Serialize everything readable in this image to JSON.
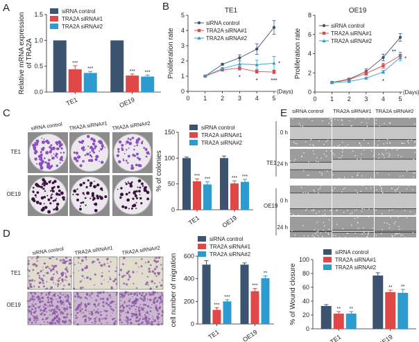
{
  "colors": {
    "control": "#3d5470",
    "sirna1": "#e04848",
    "sirna2": "#2e9bd0",
    "axis": "#222222"
  },
  "panel_labels": [
    "A",
    "B",
    "C",
    "D",
    "E"
  ],
  "photo_columns": [
    "siRNA control",
    "TRA2A siRNA#1",
    "TRA2A siRNA#2"
  ],
  "photo_rows": [
    "TE1",
    "OE19"
  ],
  "wound_timepoints": [
    "0 h",
    "24 h"
  ],
  "chart_data": [
    {
      "id": "A",
      "type": "bar",
      "title": "",
      "xlabel": "",
      "ylabel": "Relative mRNA expression of TRA2A",
      "ylim": [
        0,
        1.5
      ],
      "yticks": [
        "0.0",
        "0.5",
        "1.0",
        "1.5"
      ],
      "categories": [
        "TE1",
        "OE19"
      ],
      "legend": "top",
      "series": [
        {
          "name": "siRNA control",
          "values": [
            1.0,
            1.0
          ],
          "errors": [
            0,
            0
          ],
          "stars": [
            "",
            ""
          ]
        },
        {
          "name": "TRA2A siRNA#1",
          "values": [
            0.44,
            0.32
          ],
          "errors": [
            0.07,
            0.03
          ],
          "stars": [
            "***",
            "***"
          ]
        },
        {
          "name": "TRA2A siRNA#2",
          "values": [
            0.37,
            0.3
          ],
          "errors": [
            0.03,
            0.03
          ],
          "stars": [
            "***",
            "***"
          ]
        }
      ]
    },
    {
      "id": "B-TE1",
      "type": "line",
      "title": "TE1",
      "xlabel": "(Days)",
      "ylabel": "Proliferation rate",
      "xlim": [
        0,
        5
      ],
      "ylim": [
        0,
        5
      ],
      "xticks": [
        "0",
        "1",
        "2",
        "3",
        "4",
        "5"
      ],
      "yticks": [
        "0",
        "1",
        "2",
        "3",
        "4",
        "5"
      ],
      "x": [
        1,
        2,
        3,
        4,
        5
      ],
      "legend": "top-left",
      "series": [
        {
          "name": "siRNA control",
          "marker": "circle",
          "values": [
            1.0,
            1.78,
            2.2,
            2.78,
            4.2
          ],
          "errors": [
            0.03,
            0.05,
            0.2,
            0.35,
            0.45
          ]
        },
        {
          "name": "TRA2A siRNA#1",
          "marker": "square",
          "values": [
            1.0,
            1.42,
            1.52,
            1.3,
            1.27
          ],
          "errors": [
            0.03,
            0.08,
            0.12,
            0.1,
            0.1
          ]
        },
        {
          "name": "TRA2A siRNA#2",
          "marker": "triangle",
          "values": [
            1.0,
            1.5,
            1.8,
            1.75,
            1.85
          ],
          "errors": [
            0.03,
            0.08,
            0.2,
            0.3,
            0.45
          ]
        }
      ],
      "annotations": [
        {
          "text": "*",
          "x": 3,
          "y": 1.15,
          "pos": "below"
        },
        {
          "text": "*",
          "x": 4,
          "y": 0.95,
          "pos": "below"
        },
        {
          "text": "***",
          "x": 5,
          "y": 0.95,
          "pos": "below"
        },
        {
          "text": "*",
          "x": 5,
          "y": 1.85,
          "pos": "right"
        }
      ]
    },
    {
      "id": "B-OE19",
      "type": "line",
      "title": "OE19",
      "xlabel": "(Days)",
      "ylabel": "Proliferation rate",
      "xlim": [
        0,
        5
      ],
      "ylim": [
        0,
        8
      ],
      "xticks": [
        "0",
        "1",
        "2",
        "3",
        "4",
        "5"
      ],
      "yticks": [
        "0",
        "2",
        "4",
        "6",
        "8"
      ],
      "x": [
        1,
        2,
        3,
        4,
        5
      ],
      "legend": "top-left",
      "series": [
        {
          "name": "siRNA control",
          "marker": "circle",
          "values": [
            1.0,
            1.35,
            2.15,
            3.6,
            5.7
          ],
          "errors": [
            0.1,
            0.1,
            0.25,
            0.35,
            0.4
          ]
        },
        {
          "name": "TRA2A siRNA#1",
          "marker": "square",
          "values": [
            1.0,
            1.3,
            1.95,
            2.75,
            3.8
          ],
          "errors": [
            0.1,
            0.1,
            0.2,
            0.25,
            0.35
          ]
        },
        {
          "name": "TRA2A siRNA#2",
          "marker": "triangle",
          "values": [
            1.0,
            1.1,
            1.45,
            2.1,
            3.6
          ],
          "errors": [
            0.1,
            0.1,
            0.1,
            0.15,
            0.35
          ]
        }
      ],
      "annotations": [
        {
          "text": "*",
          "x": 4,
          "y": 1.5,
          "pos": "below"
        },
        {
          "text": "**",
          "x": 5,
          "y": 4.0,
          "pos": "left"
        },
        {
          "text": "*",
          "x": 5,
          "y": 3.5,
          "pos": "right"
        }
      ]
    },
    {
      "id": "C",
      "type": "bar",
      "title": "",
      "xlabel": "",
      "ylabel": "% of colonies",
      "ylim": [
        0,
        150
      ],
      "yticks": [
        "0",
        "50",
        "100",
        "150"
      ],
      "categories": [
        "TE1",
        "OE19"
      ],
      "legend": "top",
      "series": [
        {
          "name": "siRNA control",
          "values": [
            100,
            100
          ],
          "errors": [
            2,
            4
          ],
          "stars": [
            "",
            ""
          ]
        },
        {
          "name": "TRA2A siRNA#1",
          "values": [
            55,
            51
          ],
          "errors": [
            5,
            5
          ],
          "stars": [
            "***",
            "***"
          ]
        },
        {
          "name": "TRA2A siRNA#2",
          "values": [
            49,
            54
          ],
          "errors": [
            5,
            5
          ],
          "stars": [
            "***",
            "***"
          ]
        }
      ]
    },
    {
      "id": "D",
      "type": "bar",
      "title": "",
      "xlabel": "",
      "ylabel": "cell number of migration",
      "ylim": [
        0,
        600
      ],
      "yticks": [
        "0",
        "200",
        "400",
        "600"
      ],
      "categories": [
        "TE1",
        "OE19"
      ],
      "legend": "top",
      "series": [
        {
          "name": "siRNA control",
          "values": [
            525,
            525
          ],
          "errors": [
            35,
            15
          ],
          "stars": [
            "",
            ""
          ]
        },
        {
          "name": "TRA2A siRNA#1",
          "values": [
            125,
            290
          ],
          "errors": [
            20,
            25
          ],
          "stars": [
            "***",
            "***"
          ]
        },
        {
          "name": "TRA2A siRNA#2",
          "values": [
            200,
            405
          ],
          "errors": [
            15,
            20
          ],
          "stars": [
            "***",
            "**"
          ]
        }
      ]
    },
    {
      "id": "E",
      "type": "bar",
      "title": "",
      "xlabel": "",
      "ylabel": "% of Wound closure",
      "ylim": [
        0,
        100
      ],
      "yticks": [
        "0",
        "20",
        "40",
        "60",
        "80",
        "100"
      ],
      "categories": [
        "TE1",
        "OE19"
      ],
      "legend": "top",
      "series": [
        {
          "name": "siRNA control",
          "values": [
            33,
            77
          ],
          "errors": [
            2,
            4
          ],
          "stars": [
            "",
            ""
          ]
        },
        {
          "name": "TRA2A siRNA#1",
          "values": [
            22,
            53
          ],
          "errors": [
            3,
            3
          ],
          "stars": [
            "**",
            "**"
          ]
        },
        {
          "name": "TRA2A siRNA#2",
          "values": [
            22,
            52
          ],
          "errors": [
            3,
            5
          ],
          "stars": [
            "**",
            "**"
          ]
        }
      ]
    }
  ]
}
